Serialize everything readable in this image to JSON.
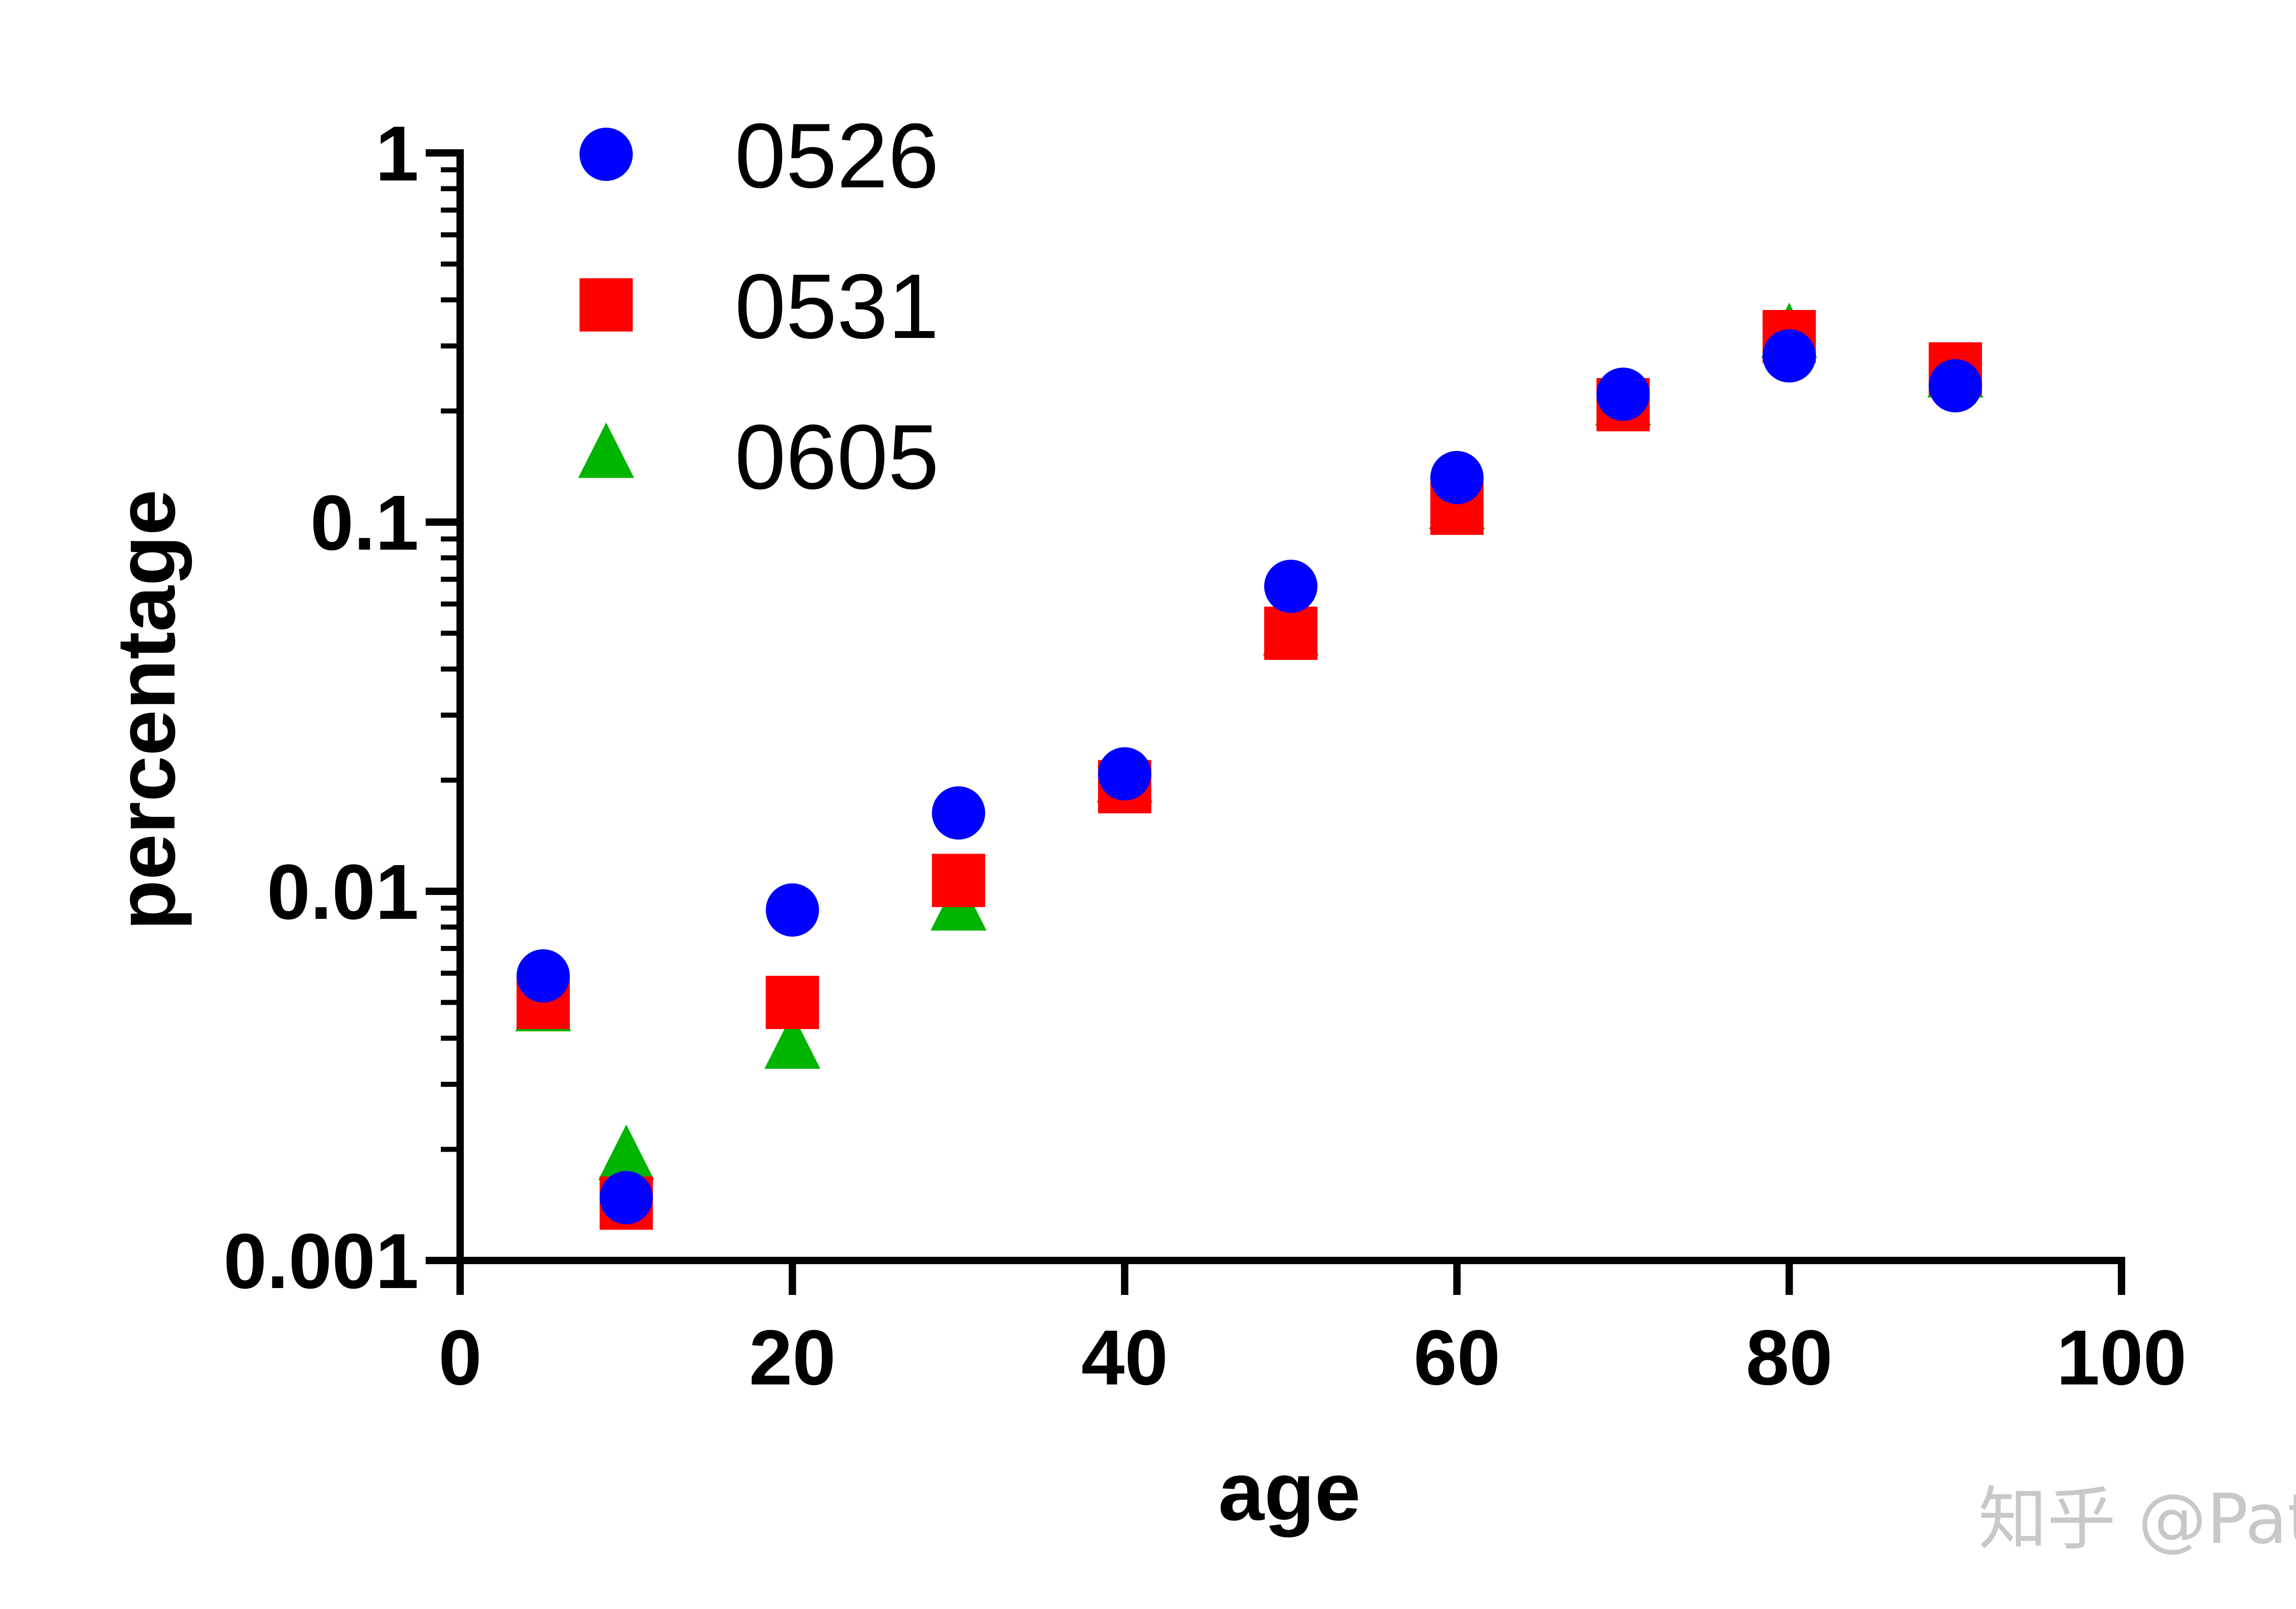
{
  "chart_data": {
    "type": "scatter",
    "title": "",
    "xlabel": "age",
    "ylabel": "percentage",
    "xlim": [
      0,
      100
    ],
    "ylim": [
      0.001,
      1
    ],
    "yscale": "log",
    "grid": false,
    "legend_position": "top-left",
    "x_ticks": [
      0,
      20,
      40,
      60,
      80,
      100
    ],
    "x_tick_labels": [
      "0",
      "20",
      "40",
      "60",
      "80",
      "100"
    ],
    "y_ticks": [
      0.001,
      0.01,
      0.1,
      1
    ],
    "y_tick_labels": [
      "0.001",
      "0.01",
      "0.1",
      "1"
    ],
    "series": [
      {
        "name": "0526",
        "marker": "circle",
        "color": "#0000ff",
        "x": [
          5,
          10,
          20,
          30,
          40,
          50,
          60,
          70,
          80,
          90
        ],
        "y": [
          0.0059,
          0.00148,
          0.0089,
          0.0163,
          0.0208,
          0.067,
          0.132,
          0.222,
          0.282,
          0.234
        ]
      },
      {
        "name": "0531",
        "marker": "square",
        "color": "#ff0000",
        "x": [
          5,
          10,
          20,
          30,
          40,
          50,
          60,
          70,
          80,
          90
        ],
        "y": [
          0.005,
          0.00143,
          0.005,
          0.0107,
          0.0192,
          0.05,
          0.109,
          0.208,
          0.318,
          0.26
        ]
      },
      {
        "name": "0605",
        "marker": "triangle",
        "color": "#00b400",
        "x": [
          5,
          10,
          20,
          30,
          40,
          50,
          60,
          70,
          80,
          90
        ],
        "y": [
          0.0048,
          0.0019,
          0.0038,
          0.009,
          0.02,
          0.05,
          0.11,
          0.21,
          0.32,
          0.25
        ]
      }
    ]
  },
  "watermark": {
    "text": "知乎 @Pat"
  }
}
